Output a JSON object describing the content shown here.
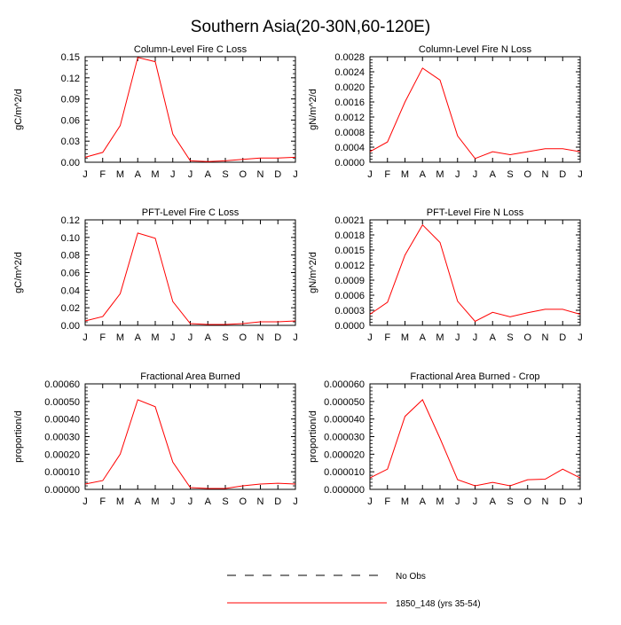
{
  "figure": {
    "title": "Southern Asia(20-30N,60-120E)"
  },
  "legend": {
    "entries": [
      {
        "label": "No Obs",
        "color": "#000000",
        "style": "dashed"
      },
      {
        "label": "1850_148 (yrs 35-54)",
        "color": "#ff0000",
        "style": "solid"
      }
    ]
  },
  "chart_data": [
    {
      "type": "line",
      "title": "Column-Level Fire C Loss",
      "ylabel": "gC/m^2/d",
      "categories": [
        "J",
        "F",
        "M",
        "A",
        "M",
        "J",
        "J",
        "A",
        "S",
        "O",
        "N",
        "D",
        "J"
      ],
      "ylim": [
        0,
        0.15
      ],
      "yticks": [
        "0.00",
        "0.03",
        "0.06",
        "0.09",
        "0.12",
        "0.15"
      ],
      "series": [
        {
          "name": "1850_148 (yrs 35-54)",
          "color": "#ff0000",
          "values": [
            0.007,
            0.014,
            0.052,
            0.149,
            0.143,
            0.04,
            0.002,
            0.001,
            0.002,
            0.004,
            0.006,
            0.006,
            0.007
          ]
        }
      ]
    },
    {
      "type": "line",
      "title": "Column-Level Fire N Loss",
      "ylabel": "gN/m^2/d",
      "categories": [
        "J",
        "F",
        "M",
        "A",
        "M",
        "J",
        "J",
        "A",
        "S",
        "O",
        "N",
        "D",
        "J"
      ],
      "ylim": [
        0,
        0.0028
      ],
      "yticks": [
        "0.0000",
        "0.0004",
        "0.0008",
        "0.0012",
        "0.0016",
        "0.0020",
        "0.0024",
        "0.0028"
      ],
      "series": [
        {
          "name": "1850_148 (yrs 35-54)",
          "color": "#ff0000",
          "values": [
            0.00028,
            0.00054,
            0.0016,
            0.0025,
            0.00218,
            0.0007,
            0.0001,
            0.00028,
            0.0002,
            0.00028,
            0.00036,
            0.00036,
            0.00028
          ]
        }
      ]
    },
    {
      "type": "line",
      "title": "PFT-Level Fire C Loss",
      "ylabel": "gC/m^2/d",
      "categories": [
        "J",
        "F",
        "M",
        "A",
        "M",
        "J",
        "J",
        "A",
        "S",
        "O",
        "N",
        "D",
        "J"
      ],
      "ylim": [
        0,
        0.12
      ],
      "yticks": [
        "0.00",
        "0.02",
        "0.04",
        "0.06",
        "0.08",
        "0.10",
        "0.12"
      ],
      "series": [
        {
          "name": "1850_148 (yrs 35-54)",
          "color": "#ff0000",
          "values": [
            0.005,
            0.01,
            0.036,
            0.105,
            0.099,
            0.027,
            0.002,
            0.001,
            0.001,
            0.002,
            0.004,
            0.004,
            0.005
          ]
        }
      ]
    },
    {
      "type": "line",
      "title": "PFT-Level Fire N Loss",
      "ylabel": "gN/m^2/d",
      "categories": [
        "J",
        "F",
        "M",
        "A",
        "M",
        "J",
        "J",
        "A",
        "S",
        "O",
        "N",
        "D",
        "J"
      ],
      "ylim": [
        0,
        0.0021
      ],
      "yticks": [
        "0.0000",
        "0.0003",
        "0.0006",
        "0.0009",
        "0.0012",
        "0.0015",
        "0.0018",
        "0.0021"
      ],
      "series": [
        {
          "name": "1850_148 (yrs 35-54)",
          "color": "#ff0000",
          "values": [
            0.00022,
            0.00046,
            0.0014,
            0.002,
            0.00165,
            0.00048,
            8e-05,
            0.00026,
            0.00017,
            0.00025,
            0.00032,
            0.00032,
            0.00022
          ]
        }
      ]
    },
    {
      "type": "line",
      "title": "Fractional Area Burned",
      "ylabel": "proportion/d",
      "categories": [
        "J",
        "F",
        "M",
        "A",
        "M",
        "J",
        "J",
        "A",
        "S",
        "O",
        "N",
        "D",
        "J"
      ],
      "ylim": [
        0,
        0.0006
      ],
      "yticks": [
        "0.00000",
        "0.00010",
        "0.00020",
        "0.00030",
        "0.00040",
        "0.00050",
        "0.00060"
      ],
      "series": [
        {
          "name": "1850_148 (yrs 35-54)",
          "color": "#ff0000",
          "values": [
            3e-05,
            5e-05,
            0.0002,
            0.00051,
            0.00047,
            0.000155,
            1e-05,
            5e-06,
            5e-06,
            2e-05,
            3e-05,
            3.5e-05,
            3e-05
          ]
        }
      ]
    },
    {
      "type": "line",
      "title": "Fractional Area Burned - Crop",
      "ylabel": "proportion/d",
      "categories": [
        "J",
        "F",
        "M",
        "A",
        "M",
        "J",
        "J",
        "A",
        "S",
        "O",
        "N",
        "D",
        "J"
      ],
      "ylim": [
        0,
        6e-05
      ],
      "yticks": [
        "0.000000",
        "0.000010",
        "0.000020",
        "0.000030",
        "0.000040",
        "0.000050",
        "0.000060"
      ],
      "series": [
        {
          "name": "1850_148 (yrs 35-54)",
          "color": "#ff0000",
          "values": [
            6.5e-06,
            1.15e-05,
            4.15e-05,
            5.1e-05,
            2.9e-05,
            5.5e-06,
            2e-06,
            4e-06,
            2e-06,
            5.5e-06,
            5.8e-06,
            1.15e-05,
            6.5e-06
          ]
        }
      ]
    }
  ]
}
